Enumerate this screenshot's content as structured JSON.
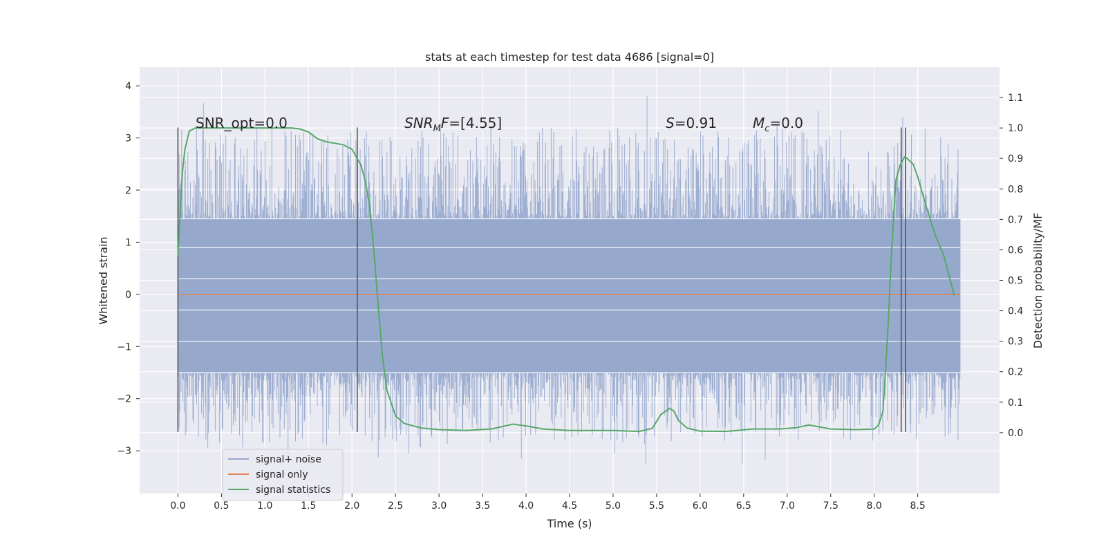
{
  "chart_data": {
    "type": "line",
    "title": "stats at each timestep for test data 4686 [signal=0]",
    "xlabel": "Time (s)",
    "ylabel_left": "Whitened strain",
    "ylabel_right": "Detection probability/MF",
    "xlim": [
      -0.44,
      9.44
    ],
    "ylim_left": [
      -3.82,
      4.36
    ],
    "ylim_right": [
      -0.2,
      1.2
    ],
    "x_ticks": [
      "0.0",
      "0.5",
      "1.0",
      "1.5",
      "2.0",
      "2.5",
      "3.0",
      "3.5",
      "4.0",
      "4.5",
      "5.0",
      "5.5",
      "6.0",
      "6.5",
      "7.0",
      "7.5",
      "8.0",
      "8.5"
    ],
    "x_tick_values": [
      0,
      0.5,
      1,
      1.5,
      2,
      2.5,
      3,
      3.5,
      4,
      4.5,
      5,
      5.5,
      6,
      6.5,
      7,
      7.5,
      8,
      8.5
    ],
    "y_left_ticks": [
      "−3",
      "−2",
      "−1",
      "0",
      "1",
      "2",
      "3",
      "4"
    ],
    "y_left_tick_values": [
      -3,
      -2,
      -1,
      0,
      1,
      2,
      3,
      4
    ],
    "y_right_ticks": [
      "0.0",
      "0.1",
      "0.2",
      "0.3",
      "0.4",
      "0.5",
      "0.6",
      "0.7",
      "0.8",
      "0.9",
      "1.0",
      "1.1"
    ],
    "y_right_tick_values": [
      0,
      0.1,
      0.2,
      0.3,
      0.4,
      0.5,
      0.6,
      0.7,
      0.8,
      0.9,
      1.0,
      1.1
    ],
    "grid": true,
    "legend_position": "lower-left",
    "noise": {
      "name": "signal+ noise",
      "t_start": 0.0,
      "t_end": 8.99,
      "band_low": -1.5,
      "band_high": 1.45,
      "spike_max": 3.84,
      "spike_min": -3.42,
      "color": "#96a9cd"
    },
    "signal_only": {
      "name": "signal only",
      "value": 0.0,
      "t_start": 0.0,
      "t_end": 8.99,
      "color": "#dd8452"
    },
    "statistics": {
      "name": "signal statistics",
      "color": "#55a868",
      "x": [
        0.0,
        0.05,
        0.08,
        0.13,
        0.2,
        0.3,
        0.5,
        0.8,
        1.0,
        1.2,
        1.3,
        1.4,
        1.5,
        1.6,
        1.7,
        1.8,
        1.9,
        2.0,
        2.1,
        2.15,
        2.2,
        2.25,
        2.3,
        2.35,
        2.4,
        2.5,
        2.6,
        2.8,
        3.0,
        3.3,
        3.6,
        3.85,
        4.0,
        4.2,
        4.5,
        5.0,
        5.3,
        5.45,
        5.55,
        5.65,
        5.7,
        5.75,
        5.85,
        6.0,
        6.3,
        6.6,
        6.9,
        7.1,
        7.25,
        7.5,
        7.8,
        8.0,
        8.05,
        8.1,
        8.15,
        8.2,
        8.25,
        8.3,
        8.35,
        8.38,
        8.45,
        8.5,
        8.6,
        8.7,
        8.8,
        8.92
      ],
      "y": [
        0.58,
        0.85,
        0.93,
        0.99,
        1.0,
        1.0,
        1.0,
        1.0,
        1.0,
        1.0,
        1.0,
        0.997,
        0.987,
        0.965,
        0.955,
        0.95,
        0.945,
        0.93,
        0.88,
        0.83,
        0.75,
        0.6,
        0.42,
        0.25,
        0.14,
        0.055,
        0.03,
        0.015,
        0.01,
        0.007,
        0.012,
        0.028,
        0.022,
        0.012,
        0.007,
        0.007,
        0.004,
        0.014,
        0.06,
        0.08,
        0.07,
        0.04,
        0.015,
        0.005,
        0.004,
        0.012,
        0.012,
        0.016,
        0.025,
        0.012,
        0.01,
        0.012,
        0.025,
        0.07,
        0.3,
        0.6,
        0.83,
        0.88,
        0.905,
        0.9,
        0.88,
        0.84,
        0.74,
        0.65,
        0.58,
        0.45
      ]
    },
    "vlines": [
      {
        "x": 0.0,
        "y0": -2.64,
        "y1": 3.2
      },
      {
        "x": 2.06,
        "y0": -2.64,
        "y1": 3.2
      },
      {
        "x": 8.31,
        "y0": -2.64,
        "y1": 3.2
      },
      {
        "x": 8.36,
        "y0": -2.64,
        "y1": 3.2
      }
    ],
    "annotations": {
      "snr_opt": "SNR_opt=0.0",
      "snr_mf_main": "SNR",
      "snr_mf_sub": "M",
      "snr_mf_rest": "F=[4.55]",
      "s_main": "S",
      "s_rest": "=0.91",
      "mc_main": "M",
      "mc_sub": "c",
      "mc_rest": "=0.0"
    }
  }
}
